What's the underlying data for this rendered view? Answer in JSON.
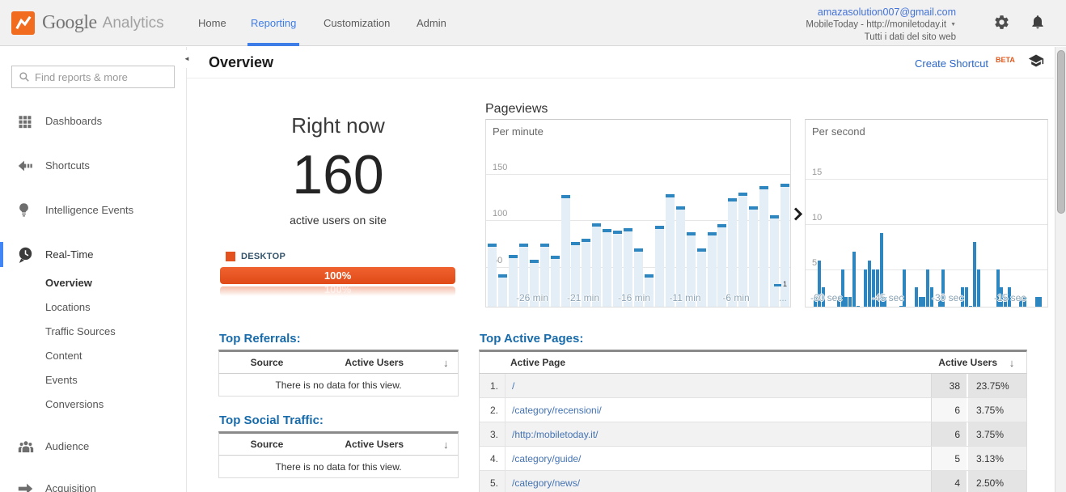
{
  "header": {
    "brand": {
      "name": "Google",
      "product": "Analytics"
    },
    "nav": [
      {
        "label": "Home",
        "active": false
      },
      {
        "label": "Reporting",
        "active": true
      },
      {
        "label": "Customization",
        "active": false
      },
      {
        "label": "Admin",
        "active": false
      }
    ],
    "account": {
      "email": "amazasolution007@gmail.com",
      "property": "MobileToday - http://moniletoday.it",
      "view": "Tutti i dati del sito web"
    }
  },
  "sidebar": {
    "search_placeholder": "Find reports & more",
    "items": [
      {
        "label": "Dashboards",
        "icon": "dashboards-grid-icon",
        "active": false
      },
      {
        "label": "Shortcuts",
        "icon": "shortcuts-arrow-icon",
        "active": false
      },
      {
        "label": "Intelligence Events",
        "icon": "intelligence-lightbulb-icon",
        "active": false
      },
      {
        "label": "Real-Time",
        "icon": "realtime-clock-icon",
        "active": true,
        "children": [
          {
            "label": "Overview",
            "active": true
          },
          {
            "label": "Locations",
            "active": false
          },
          {
            "label": "Traffic Sources",
            "active": false
          },
          {
            "label": "Content",
            "active": false
          },
          {
            "label": "Events",
            "active": false
          },
          {
            "label": "Conversions",
            "active": false
          }
        ]
      },
      {
        "label": "Audience",
        "icon": "audience-people-icon",
        "active": false
      },
      {
        "label": "Acquisition",
        "icon": "acquisition-arrow-icon",
        "active": false
      }
    ]
  },
  "page": {
    "title": "Overview",
    "create_shortcut_label": "Create Shortcut",
    "beta_badge": "BETA"
  },
  "right_now": {
    "heading": "Right now",
    "active_users": "160",
    "subtitle": "active users on site",
    "device_legend": "DESKTOP",
    "device_percent": "100%"
  },
  "pageviews": {
    "heading": "Pageviews"
  },
  "chart_data": [
    {
      "type": "bar",
      "title": "Per minute",
      "ylabel": "Pageviews",
      "values": [
        75,
        42,
        63,
        75,
        58,
        75,
        62,
        127,
        77,
        80,
        97,
        91,
        89,
        92,
        70,
        42,
        94,
        128,
        115,
        87,
        70,
        87,
        96,
        124,
        130,
        115,
        137,
        106,
        140
      ],
      "x_tick_labels": [
        "-26 min",
        "-21 min",
        "-16 min",
        "-11 min",
        "-6 min"
      ],
      "x_overflow_label": "...",
      "y_ticks": [
        50,
        100,
        150
      ],
      "ylim": [
        0,
        175
      ],
      "grid": true,
      "last_point_label": "1",
      "bar_color": "#2e86c1",
      "fill_color": "#e3eef7"
    },
    {
      "type": "bar",
      "title": "Per second",
      "ylabel": "Pageviews",
      "values": [
        2,
        6,
        3,
        0,
        0,
        0,
        2,
        5,
        2,
        2,
        7,
        1,
        0,
        5,
        6,
        5,
        5,
        9,
        2,
        0,
        0,
        0,
        1,
        5,
        0,
        0,
        3,
        2,
        2,
        5,
        3,
        0,
        2,
        5,
        0,
        0,
        0,
        0,
        3,
        3,
        1,
        8,
        5,
        0,
        0,
        0,
        0,
        5,
        3,
        2,
        3,
        0,
        0,
        2,
        2,
        0,
        0,
        2,
        2,
        0
      ],
      "x_tick_labels": [
        "-60 sec",
        "-45 sec",
        "-30 sec",
        "-15 sec"
      ],
      "y_ticks": [
        5,
        10,
        15
      ],
      "ylim": [
        0,
        17.5
      ],
      "grid": true,
      "bar_color": "#2e86c1"
    }
  ],
  "tables": {
    "top_referrals": {
      "title": "Top Referrals:",
      "col_source": "Source",
      "col_users": "Active Users",
      "empty_text": "There is no data for this view."
    },
    "top_social": {
      "title": "Top Social Traffic:",
      "col_source": "Source",
      "col_users": "Active Users",
      "empty_text": "There is no data for this view."
    },
    "top_active_pages": {
      "title": "Top Active Pages:",
      "col_page": "Active Page",
      "col_users": "Active Users",
      "rows": [
        {
          "rank": "1.",
          "page": "/",
          "users": "38",
          "percent": "23.75%"
        },
        {
          "rank": "2.",
          "page": "/category/recensioni/",
          "users": "6",
          "percent": "3.75%"
        },
        {
          "rank": "3.",
          "page": "/http:/mobiletoday.it/",
          "users": "6",
          "percent": "3.75%"
        },
        {
          "rank": "4.",
          "page": "/category/guide/",
          "users": "5",
          "percent": "3.13%"
        },
        {
          "rank": "5.",
          "page": "/category/news/",
          "users": "4",
          "percent": "2.50%"
        }
      ]
    }
  },
  "colors": {
    "accent_orange": "#e5511e",
    "link_blue": "#4373b4",
    "heading_blue": "#176bab",
    "nav_active_blue": "#3e7de8",
    "bar_blue": "#2e86c1"
  }
}
